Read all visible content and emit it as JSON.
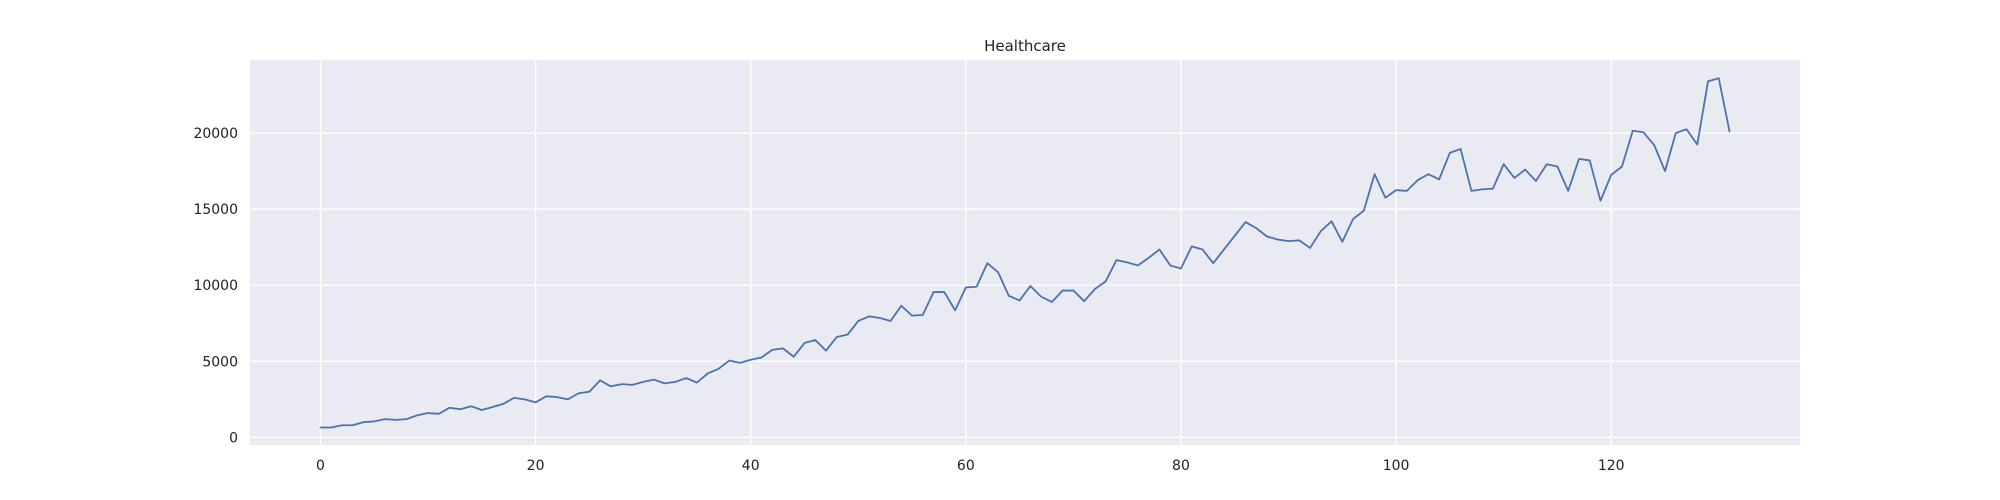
{
  "chart_data": {
    "type": "line",
    "title": "Healthcare",
    "xlabel": "",
    "ylabel": "",
    "xlim": [
      -6.55,
      137.55
    ],
    "ylim": [
      -500,
      24800
    ],
    "xticks": [
      0,
      20,
      40,
      60,
      80,
      100,
      120
    ],
    "yticks": [
      0,
      5000,
      10000,
      15000,
      20000
    ],
    "grid": true,
    "series": [
      {
        "color": "#4c72b0",
        "x": [
          0,
          1,
          2,
          3,
          4,
          5,
          6,
          7,
          8,
          9,
          10,
          11,
          12,
          13,
          14,
          15,
          16,
          17,
          18,
          19,
          20,
          21,
          22,
          23,
          24,
          25,
          26,
          27,
          28,
          29,
          30,
          31,
          32,
          33,
          34,
          35,
          36,
          37,
          38,
          39,
          40,
          41,
          42,
          43,
          44,
          45,
          46,
          47,
          48,
          49,
          50,
          51,
          52,
          53,
          54,
          55,
          56,
          57,
          58,
          59,
          60,
          61,
          62,
          63,
          64,
          65,
          66,
          67,
          68,
          69,
          70,
          71,
          72,
          73,
          74,
          75,
          76,
          77,
          78,
          79,
          80,
          81,
          82,
          83,
          84,
          85,
          86,
          87,
          88,
          89,
          90,
          91,
          92,
          93,
          94,
          95,
          96,
          97,
          98,
          99,
          100,
          101,
          102,
          103,
          104,
          105,
          106,
          107,
          108,
          109,
          110,
          111,
          112,
          113,
          114,
          115,
          116,
          117,
          118,
          119,
          120,
          121,
          122,
          123,
          124,
          125,
          126,
          127,
          128,
          129,
          130,
          131
        ],
        "y": [
          650,
          650,
          800,
          800,
          1000,
          1050,
          1200,
          1150,
          1200,
          1450,
          1600,
          1550,
          1950,
          1850,
          2050,
          1800,
          2000,
          2200,
          2600,
          2500,
          2300,
          2700,
          2650,
          2500,
          2900,
          3000,
          3750,
          3350,
          3500,
          3450,
          3650,
          3800,
          3550,
          3650,
          3900,
          3600,
          4200,
          4500,
          5050,
          4900,
          5100,
          5250,
          5750,
          5850,
          5300,
          6200,
          6400,
          5700,
          6600,
          6750,
          7650,
          7950,
          7850,
          7650,
          8650,
          8000,
          8050,
          9550,
          9550,
          8350,
          9850,
          9900,
          11450,
          10850,
          9300,
          9000,
          9950,
          9250,
          8900,
          9650,
          9650,
          8950,
          9750,
          10250,
          11650,
          11500,
          11300,
          11800,
          12350,
          11300,
          11100,
          12550,
          12350,
          11450,
          12350,
          13250,
          14150,
          13750,
          13200,
          13000,
          12900,
          12950,
          12450,
          13550,
          14200,
          12850,
          14350,
          14900,
          17300,
          15750,
          16250,
          16200,
          16900,
          17300,
          16950,
          18700,
          18950,
          16200,
          16300,
          16350,
          17950,
          17050,
          17600,
          16850,
          17950,
          17800,
          16200,
          18300,
          18200,
          15550,
          17250,
          17800,
          20150,
          20050,
          19200,
          17500,
          20000,
          20250,
          19250,
          23400,
          23600,
          20100
        ]
      }
    ]
  }
}
